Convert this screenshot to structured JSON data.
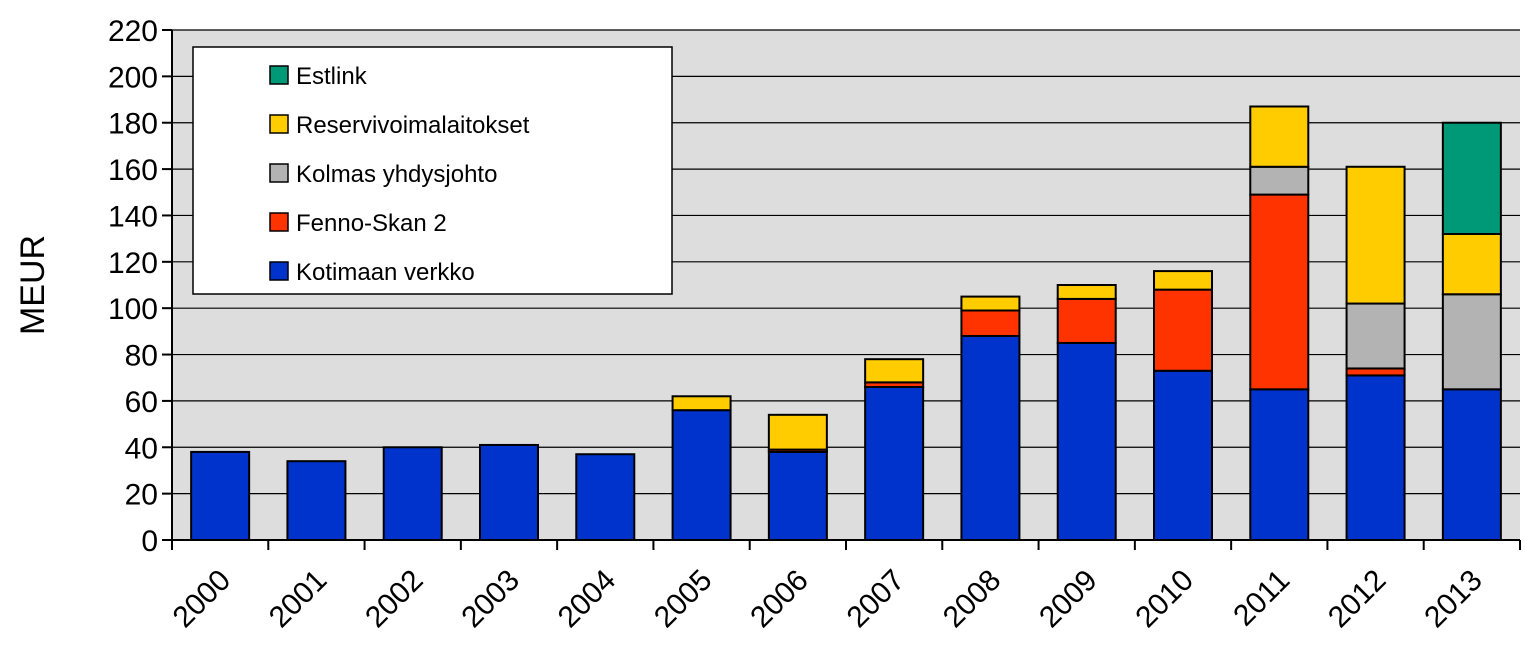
{
  "chart_data": {
    "type": "bar",
    "stacked": true,
    "categories": [
      "2000",
      "2001",
      "2002",
      "2003",
      "2004",
      "2005",
      "2006",
      "2007",
      "2008",
      "2009",
      "2010",
      "2011",
      "2012",
      "2013"
    ],
    "series": [
      {
        "name": "Kotimaan verkko",
        "color": "#0033CC",
        "values": [
          38,
          34,
          40,
          41,
          37,
          56,
          38,
          66,
          88,
          85,
          73,
          65,
          71,
          65
        ]
      },
      {
        "name": "Fenno-Skan 2",
        "color": "#FF3300",
        "values": [
          0,
          0,
          0,
          0,
          0,
          0,
          1,
          2,
          11,
          19,
          35,
          84,
          3,
          0
        ]
      },
      {
        "name": "Kolmas yhdysjohto",
        "color": "#B3B3B3",
        "values": [
          0,
          0,
          0,
          0,
          0,
          0,
          0,
          0,
          0,
          0,
          0,
          12,
          28,
          41
        ]
      },
      {
        "name": "Reservivoimalaitokset",
        "color": "#FFCC00",
        "values": [
          0,
          0,
          0,
          0,
          0,
          6,
          15,
          10,
          6,
          6,
          8,
          26,
          59,
          26
        ]
      },
      {
        "name": "Estlink",
        "color": "#009977",
        "values": [
          0,
          0,
          0,
          0,
          0,
          0,
          0,
          0,
          0,
          0,
          0,
          0,
          0,
          48
        ]
      }
    ],
    "legend_order": [
      "Estlink",
      "Reservivoimalaitokset",
      "Kolmas yhdysjohto",
      "Fenno-Skan 2",
      "Kotimaan verkko"
    ],
    "legend_position": "top-left",
    "ylabel": "MEUR",
    "xlabel": "",
    "ylim": [
      0,
      220
    ],
    "yticks": [
      0,
      20,
      40,
      60,
      80,
      100,
      120,
      140,
      160,
      180,
      200,
      220
    ],
    "grid": true,
    "plot_background": "#DDDDDD"
  }
}
